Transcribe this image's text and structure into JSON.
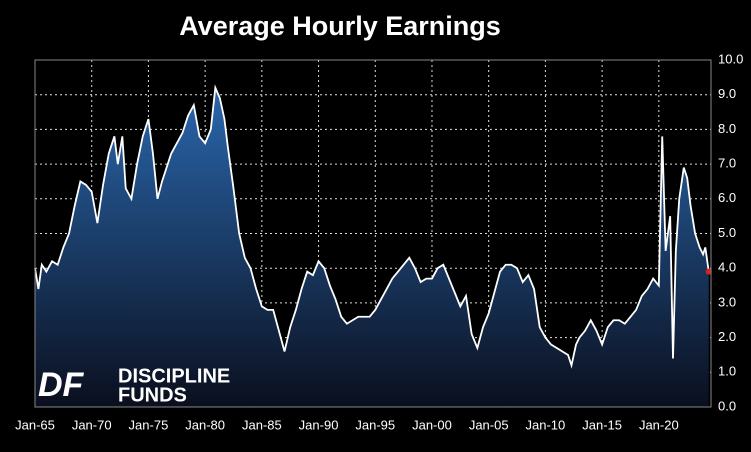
{
  "chart_data": {
    "type": "area",
    "title": "Average Hourly Earnings",
    "x": [
      1965.0,
      1965.3,
      1965.6,
      1966.0,
      1966.5,
      1967.0,
      1967.5,
      1968.0,
      1968.5,
      1969.0,
      1969.5,
      1970.0,
      1970.5,
      1971.0,
      1971.5,
      1972.0,
      1972.3,
      1972.7,
      1973.0,
      1973.5,
      1974.0,
      1974.5,
      1975.0,
      1975.4,
      1975.8,
      1976.2,
      1976.7,
      1977.0,
      1977.5,
      1978.0,
      1978.5,
      1979.0,
      1979.5,
      1980.0,
      1980.5,
      1980.9,
      1981.3,
      1981.7,
      1982.0,
      1982.5,
      1983.0,
      1983.5,
      1984.0,
      1984.5,
      1985.0,
      1985.5,
      1986.0,
      1986.5,
      1987.0,
      1987.5,
      1988.0,
      1988.5,
      1989.0,
      1989.5,
      1990.0,
      1990.5,
      1991.0,
      1991.5,
      1992.0,
      1992.5,
      1993.0,
      1993.5,
      1994.0,
      1994.5,
      1995.0,
      1995.5,
      1996.0,
      1996.5,
      1997.0,
      1997.5,
      1998.0,
      1998.5,
      1999.0,
      1999.5,
      2000.0,
      2000.5,
      2001.0,
      2001.5,
      2002.0,
      2002.5,
      2003.0,
      2003.5,
      2004.0,
      2004.5,
      2005.0,
      2005.5,
      2006.0,
      2006.5,
      2007.0,
      2007.5,
      2008.0,
      2008.5,
      2009.0,
      2009.5,
      2010.0,
      2010.5,
      2011.0,
      2011.5,
      2012.0,
      2012.3,
      2012.7,
      2013.0,
      2013.5,
      2014.0,
      2014.5,
      2015.0,
      2015.5,
      2016.0,
      2016.5,
      2017.0,
      2017.5,
      2018.0,
      2018.5,
      2019.0,
      2019.5,
      2020.0,
      2020.3,
      2020.6,
      2021.0,
      2021.25,
      2021.5,
      2021.8,
      2022.2,
      2022.5,
      2022.8,
      2023.2,
      2023.6,
      2023.9,
      2024.1,
      2024.4
    ],
    "values": [
      4.0,
      3.4,
      4.1,
      3.9,
      4.2,
      4.1,
      4.6,
      5.0,
      5.8,
      6.5,
      6.4,
      6.2,
      5.3,
      6.4,
      7.3,
      7.8,
      7.0,
      7.8,
      6.3,
      6.0,
      7.0,
      7.8,
      8.3,
      7.3,
      6.0,
      6.5,
      7.0,
      7.3,
      7.6,
      7.9,
      8.4,
      8.7,
      7.8,
      7.6,
      8.0,
      9.2,
      8.9,
      8.3,
      7.5,
      6.3,
      5.0,
      4.3,
      4.0,
      3.4,
      2.9,
      2.8,
      2.8,
      2.2,
      1.6,
      2.3,
      2.8,
      3.4,
      3.9,
      3.8,
      4.2,
      4.0,
      3.5,
      3.1,
      2.6,
      2.4,
      2.5,
      2.6,
      2.6,
      2.6,
      2.8,
      3.1,
      3.4,
      3.7,
      3.9,
      4.1,
      4.3,
      4.0,
      3.6,
      3.7,
      3.7,
      4.0,
      4.1,
      3.7,
      3.3,
      2.9,
      3.2,
      2.1,
      1.7,
      2.3,
      2.7,
      3.3,
      3.9,
      4.1,
      4.1,
      4.0,
      3.6,
      3.8,
      3.4,
      2.3,
      2.0,
      1.8,
      1.7,
      1.6,
      1.5,
      1.2,
      1.8,
      2.0,
      2.2,
      2.5,
      2.2,
      1.8,
      2.3,
      2.5,
      2.5,
      2.4,
      2.6,
      2.8,
      3.2,
      3.4,
      3.7,
      3.5,
      7.8,
      4.5,
      5.5,
      1.4,
      4.5,
      6.0,
      6.9,
      6.6,
      5.8,
      5.0,
      4.6,
      4.4,
      4.6,
      3.9
    ],
    "xlim": [
      1965,
      2024.6
    ],
    "xticks": [
      {
        "value": 1965,
        "label": "Jan-65"
      },
      {
        "value": 1970,
        "label": "Jan-70"
      },
      {
        "value": 1975,
        "label": "Jan-75"
      },
      {
        "value": 1980,
        "label": "Jan-80"
      },
      {
        "value": 1985,
        "label": "Jan-85"
      },
      {
        "value": 1990,
        "label": "Jan-90"
      },
      {
        "value": 1995,
        "label": "Jan-95"
      },
      {
        "value": 2000,
        "label": "Jan-00"
      },
      {
        "value": 2005,
        "label": "Jan-05"
      },
      {
        "value": 2010,
        "label": "Jan-10"
      },
      {
        "value": 2015,
        "label": "Jan-15"
      },
      {
        "value": 2020,
        "label": "Jan-20"
      }
    ],
    "ylim": [
      0,
      10
    ],
    "yticks": [
      {
        "value": 0,
        "label": "0.0"
      },
      {
        "value": 1,
        "label": "1.0"
      },
      {
        "value": 2,
        "label": "2.0"
      },
      {
        "value": 3,
        "label": "3.0"
      },
      {
        "value": 4,
        "label": "4.0"
      },
      {
        "value": 5,
        "label": "5.0"
      },
      {
        "value": 6,
        "label": "6.0"
      },
      {
        "value": 7,
        "label": "7.0"
      },
      {
        "value": 8,
        "label": "8.0"
      },
      {
        "value": 9,
        "label": "9.0"
      },
      {
        "value": 10,
        "label": "10.0"
      }
    ],
    "grid": true,
    "color": "#ffffff",
    "fill_color": "#2a67ad",
    "marker_color": "#e0201b",
    "logo": {
      "mark": "DF",
      "line1": "DISCIPLINE",
      "line2": "FUNDS"
    }
  }
}
